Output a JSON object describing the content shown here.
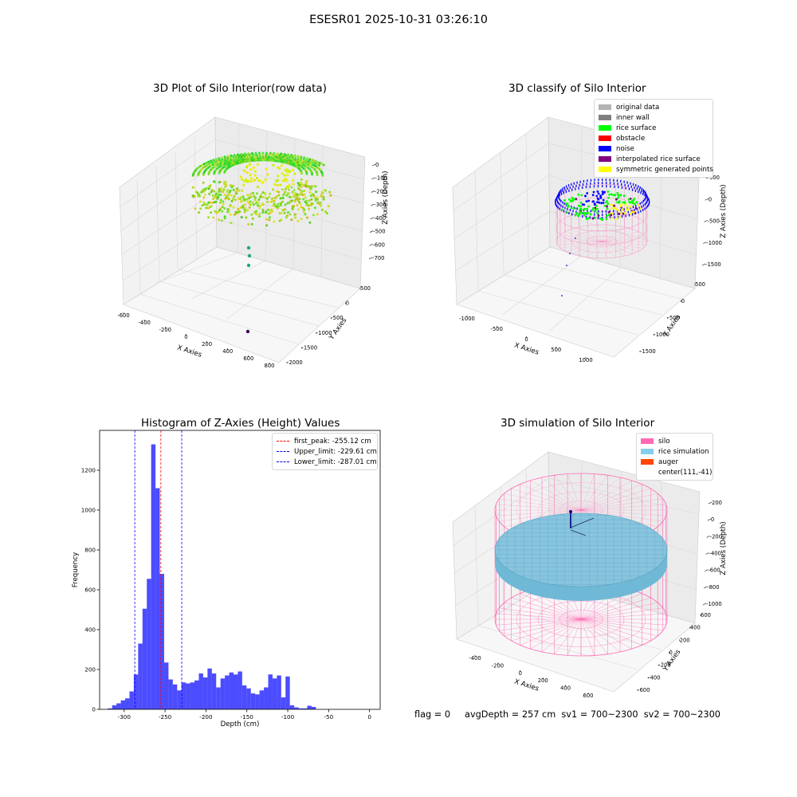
{
  "figure": {
    "suptitle": "ESESR01 2025-10-31 03:26:10",
    "status": {
      "flag": "flag = 0",
      "avg_depth": "avgDepth = 257 cm",
      "sv1": "sv1 = 700~2300",
      "sv2": "sv2 = 700~2300"
    }
  },
  "panels": {
    "raw": {
      "title": "3D Plot of Silo Interior(row data)",
      "xlabel": "X Axies",
      "ylabel": "Y Axies",
      "zlabel": "Z Axies (Depth)",
      "xticks": [
        "-600",
        "-400",
        "-200",
        "0",
        "200",
        "400",
        "600",
        "800"
      ],
      "yticks": [
        "-2000",
        "-1500",
        "-1000",
        "-500",
        "0",
        "500"
      ],
      "zticks": [
        "0",
        "-100",
        "-200",
        "-300",
        "-400",
        "-500",
        "-600",
        "-700"
      ]
    },
    "classify": {
      "title": "3D classify of Silo Interior",
      "xlabel": "X Axies",
      "ylabel": "Y Axies",
      "zlabel": "Z Axies (Depth)",
      "xticks": [
        "-1000",
        "-500",
        "0",
        "500",
        "1000"
      ],
      "yticks": [
        "-1500",
        "-1000",
        "-500",
        "0",
        "500"
      ],
      "zticks": [
        "500",
        "0",
        "-500",
        "-1000",
        "-1500"
      ],
      "legend": [
        {
          "label": "original data",
          "color": "#b3b3b3"
        },
        {
          "label": "inner wall",
          "color": "#808080"
        },
        {
          "label": "rice surface",
          "color": "#00ff00"
        },
        {
          "label": "obstacle",
          "color": "#ff0000"
        },
        {
          "label": "noise",
          "color": "#0000ff"
        },
        {
          "label": "interpolated rice surface",
          "color": "#800080"
        },
        {
          "label": "symmetric generated points",
          "color": "#ffff00"
        }
      ]
    },
    "simulation": {
      "title": "3D simulation of Silo Interior",
      "xlabel": "X Axies",
      "ylabel": "Y Axies",
      "zlabel": "Z Axies (Depth)",
      "xticks": [
        "-400",
        "-200",
        "0",
        "200",
        "400",
        "600"
      ],
      "yticks": [
        "-600",
        "-400",
        "-200",
        "0",
        "200",
        "400",
        "600"
      ],
      "zticks": [
        "200",
        "0",
        "-200",
        "-400",
        "-600",
        "-800",
        "-1000"
      ],
      "legend": [
        {
          "label": "silo",
          "color": "#ff69b4"
        },
        {
          "label": "rice simulation",
          "color": "#87ceeb"
        },
        {
          "label": "auger",
          "color": "#ff4500"
        },
        {
          "label": "center(111,-41)",
          "color": null
        }
      ]
    }
  },
  "chart_data": {
    "type": "bar",
    "title": "Histogram of Z-Axies (Height) Values",
    "xlabel": "Depth (cm)",
    "ylabel": "Frequency",
    "xlim": [
      -330,
      13
    ],
    "ylim": [
      0,
      1400
    ],
    "xticks": [
      -300,
      -250,
      -200,
      -150,
      -100,
      -50,
      0
    ],
    "yticks": [
      0,
      200,
      400,
      600,
      800,
      1000,
      1200
    ],
    "bar_color": "#0000ff",
    "bar_opacity": 0.7,
    "bin_start": -320,
    "bin_width": 5.3,
    "values": [
      5,
      20,
      30,
      45,
      55,
      90,
      175,
      330,
      505,
      655,
      1330,
      1110,
      680,
      235,
      150,
      125,
      95,
      135,
      130,
      135,
      145,
      180,
      160,
      205,
      180,
      110,
      155,
      170,
      185,
      175,
      190,
      120,
      105,
      80,
      75,
      95,
      110,
      175,
      155,
      170,
      60,
      165,
      20,
      10,
      5,
      5,
      18,
      12
    ],
    "lines": [
      {
        "name": "first_peak",
        "label": "first_peak: -255.12 cm",
        "x": -255.12,
        "color": "#ff0000"
      },
      {
        "name": "upper_limit",
        "label": "Upper_limit: -229.61 cm",
        "x": -229.61,
        "color": "#0000ff"
      },
      {
        "name": "lower_limit",
        "label": "Lower_limit: -287.01 cm",
        "x": -287.01,
        "color": "#0000ff"
      }
    ],
    "legend_position": "upper right",
    "grid": false
  }
}
